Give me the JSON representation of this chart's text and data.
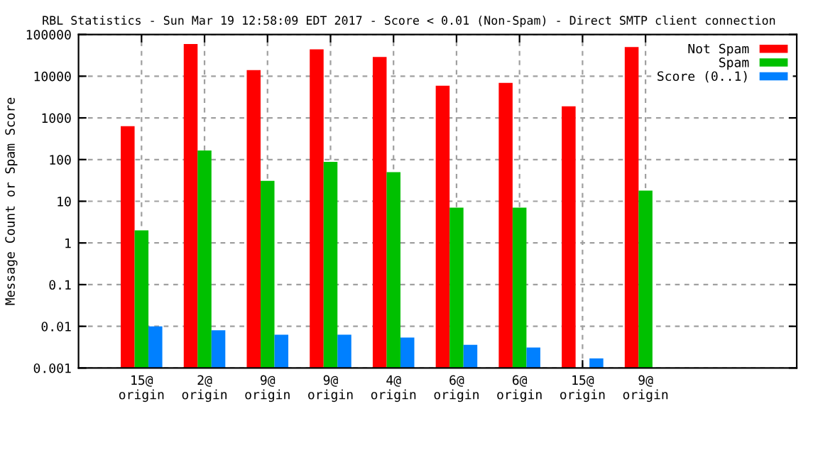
{
  "chart_data": {
    "type": "bar",
    "title": "RBL Statistics - Sun Mar 19 12:58:09 EDT 2017 - Score < 0.01 (Non-Spam) - Direct SMTP client connection",
    "ylabel": "Message Count or Spam Score",
    "categories": [
      "15@\norigin",
      "2@\norigin",
      "9@\norigin",
      "9@\norigin",
      "4@\norigin",
      "6@\norigin",
      "6@\norigin",
      "15@\norigin",
      "9@\norigin"
    ],
    "series": [
      {
        "name": "Not Spam",
        "color": "#ff0000",
        "values": [
          630,
          59000,
          14000,
          44000,
          29000,
          5900,
          6900,
          1900,
          50000
        ]
      },
      {
        "name": "Spam",
        "color": "#00c000",
        "values": [
          2,
          165,
          31,
          88,
          50,
          7,
          7,
          null,
          18
        ]
      },
      {
        "name": "Score (0..1)",
        "color": "#0080ff",
        "values": [
          0.01,
          0.008,
          0.0063,
          0.0063,
          0.0054,
          0.0036,
          0.0031,
          0.0017,
          null
        ]
      }
    ],
    "log": true,
    "ylim": [
      0.001,
      100000
    ],
    "yticks": [
      {
        "value": 0.001,
        "label": "0.001"
      },
      {
        "value": 0.01,
        "label": "0.01"
      },
      {
        "value": 0.1,
        "label": "0.1"
      },
      1,
      10,
      100,
      1000,
      10000,
      100000
    ],
    "grid": true,
    "legend": "top right"
  }
}
